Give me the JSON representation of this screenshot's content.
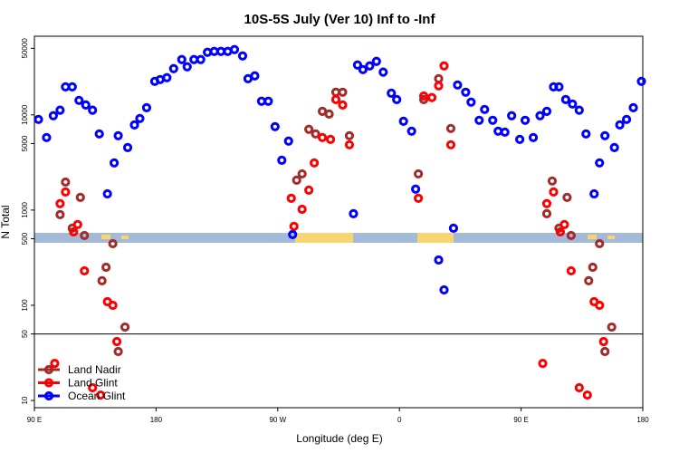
{
  "chart_data": {
    "type": "scatter",
    "title": "10S-5S July (Ver 10)   Inf to -Inf",
    "x_label": "Longitude (deg E)",
    "y_label": "N Total",
    "xlim": [
      90,
      540
    ],
    "xticks": [
      {
        "value": 90,
        "label": "90 E"
      },
      {
        "value": 180,
        "label": "180"
      },
      {
        "value": 270,
        "label": "90 W"
      },
      {
        "value": 360,
        "label": "0"
      },
      {
        "value": 450,
        "label": "90 E"
      },
      {
        "value": 540,
        "label": "180"
      }
    ],
    "ylim": [
      8.4,
      67000
    ],
    "yticks": [
      10,
      50,
      100,
      500,
      1000,
      5000,
      10000,
      50000
    ],
    "log_y": true,
    "hline": 50,
    "legend": "lower left",
    "series": [
      {
        "name": "Land Nadir",
        "color": "#a52a2a",
        "x": [
          109,
          113,
          118,
          124,
          127,
          140,
          143,
          148,
          152,
          157,
          284,
          288,
          293,
          298,
          303,
          308,
          313,
          318,
          323,
          374,
          378,
          389,
          398,
          469,
          473,
          478,
          484,
          487,
          500,
          503,
          508,
          512,
          517
        ],
        "values": [
          896,
          1970,
          645,
          1360,
          541,
          181,
          251,
          444,
          32.7,
          59,
          2060,
          2400,
          7050,
          6310,
          10900,
          10200,
          17300,
          17300,
          6040,
          2400,
          14500,
          24000,
          7200,
          916,
          2020,
          645,
          1360,
          541,
          181,
          251,
          444,
          32.7,
          59
        ]
      },
      {
        "name": "Land Glint",
        "color": "#ff0000",
        "x": [
          105,
          113,
          109,
          119,
          122,
          127,
          133,
          139,
          144,
          148,
          151,
          280,
          282,
          288,
          293,
          297,
          303,
          309,
          313,
          318,
          323,
          374,
          378,
          384,
          389,
          393,
          398,
          466,
          474,
          469,
          479,
          482,
          487,
          493,
          499,
          504,
          508,
          511
        ],
        "values": [
          24.5,
          1550,
          1170,
          590,
          705,
          230,
          13.6,
          11.4,
          109,
          100,
          41.6,
          1330,
          675,
          1020,
          1620,
          3130,
          5780,
          5530,
          14500,
          12700,
          4850,
          1330,
          15800,
          15200,
          20200,
          32700,
          4850,
          24.5,
          1550,
          1170,
          590,
          705,
          230,
          13.6,
          11.4,
          109,
          100,
          41.6
        ]
      },
      {
        "name": "Ocean Glint",
        "color": "#0000ff",
        "x": [
          93,
          99,
          104,
          109,
          113,
          118,
          123,
          128,
          133,
          138,
          144,
          149,
          152,
          159,
          164,
          168,
          173,
          179,
          183,
          188,
          193,
          199,
          203,
          208,
          213,
          218,
          223,
          228,
          233,
          238,
          244,
          248,
          253,
          258,
          263,
          268,
          273,
          278,
          281,
          326,
          329,
          333,
          338,
          343,
          348,
          354,
          358,
          363,
          369,
          372,
          389,
          393,
          400,
          403,
          409,
          413,
          419,
          423,
          429,
          433,
          438,
          443,
          449,
          453,
          459,
          464,
          469,
          474,
          478,
          483,
          488,
          493,
          498,
          504,
          508,
          512,
          519,
          523,
          528,
          533,
          539
        ],
        "values": [
          8960,
          5780,
          9800,
          11200,
          19700,
          19700,
          14200,
          12700,
          11200,
          6310,
          1480,
          3130,
          6040,
          4540,
          7850,
          9160,
          11900,
          22500,
          23500,
          24600,
          30600,
          38100,
          32000,
          38100,
          38100,
          45400,
          46400,
          46400,
          46400,
          48500,
          41600,
          24000,
          25700,
          13900,
          13900,
          7520,
          3340,
          5300,
          553,
          916,
          33400,
          29900,
          32700,
          36500,
          28100,
          16900,
          14500,
          8570,
          6740,
          1660,
          299,
          145,
          645,
          20600,
          17300,
          13600,
          8770,
          11400,
          8770,
          6740,
          6590,
          9800,
          5530,
          8770,
          5780,
          9800,
          10900,
          19700,
          19700,
          14500,
          13000,
          11200,
          6310,
          1480,
          3130,
          6040,
          4540,
          7850,
          8960,
          11900,
          22500
        ]
      }
    ]
  }
}
